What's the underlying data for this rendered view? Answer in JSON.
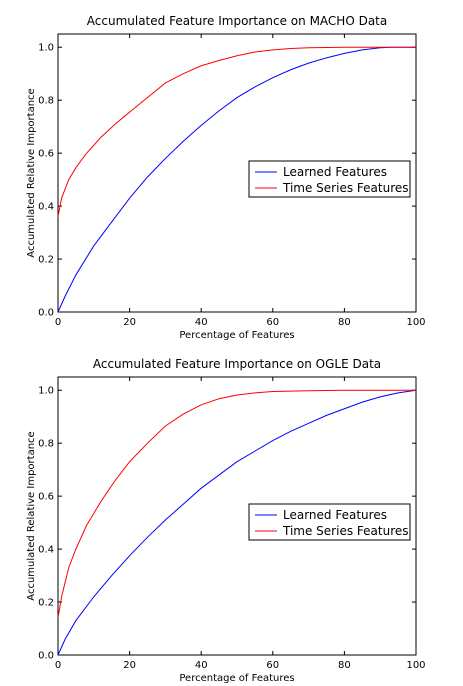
{
  "chart_data": [
    {
      "type": "line",
      "title": "Accumulated Feature Importance on MACHO Data",
      "xlabel": "Percentage of Features",
      "ylabel": "Accumulated Relative Importance",
      "xlim": [
        0,
        100
      ],
      "ylim": [
        0,
        1.05
      ],
      "xticks": [
        "0",
        "20",
        "40",
        "60",
        "80",
        "100"
      ],
      "yticks": [
        "0.0",
        "0.2",
        "0.4",
        "0.6",
        "0.8",
        "1.0"
      ],
      "grid": false,
      "legend_position": "center-right",
      "series": [
        {
          "name": "Learned Features",
          "color": "#0000ff",
          "x": [
            0,
            2,
            5,
            10,
            15,
            20,
            25,
            30,
            35,
            40,
            45,
            50,
            55,
            60,
            65,
            70,
            75,
            80,
            85,
            90,
            93,
            100
          ],
          "y": [
            0,
            0.06,
            0.14,
            0.25,
            0.34,
            0.43,
            0.51,
            0.58,
            0.645,
            0.705,
            0.76,
            0.81,
            0.85,
            0.885,
            0.915,
            0.94,
            0.96,
            0.977,
            0.99,
            0.998,
            1.0,
            1.0
          ]
        },
        {
          "name": "Time Series Features",
          "color": "#ff0000",
          "x": [
            0,
            1,
            3,
            5,
            8,
            12,
            16,
            20,
            25,
            30,
            35,
            40,
            45,
            50,
            55,
            60,
            65,
            70,
            80,
            90,
            100
          ],
          "y": [
            0.36,
            0.43,
            0.5,
            0.545,
            0.6,
            0.66,
            0.71,
            0.755,
            0.81,
            0.865,
            0.9,
            0.93,
            0.95,
            0.968,
            0.982,
            0.99,
            0.995,
            0.998,
            1.0,
            1.0,
            1.0
          ]
        }
      ]
    },
    {
      "type": "line",
      "title": "Accumulated Feature Importance on OGLE Data",
      "xlabel": "Percentage of Features",
      "ylabel": "Accumulated Relative Importance",
      "xlim": [
        0,
        100
      ],
      "ylim": [
        0,
        1.05
      ],
      "xticks": [
        "0",
        "20",
        "40",
        "60",
        "80",
        "100"
      ],
      "yticks": [
        "0.0",
        "0.2",
        "0.4",
        "0.6",
        "0.8",
        "1.0"
      ],
      "grid": false,
      "legend_position": "center-right",
      "series": [
        {
          "name": "Learned Features",
          "color": "#0000ff",
          "x": [
            0,
            2,
            5,
            10,
            15,
            20,
            25,
            30,
            35,
            40,
            45,
            50,
            55,
            60,
            65,
            70,
            75,
            80,
            85,
            90,
            95,
            100
          ],
          "y": [
            0,
            0.06,
            0.13,
            0.22,
            0.3,
            0.375,
            0.445,
            0.51,
            0.57,
            0.63,
            0.68,
            0.73,
            0.77,
            0.81,
            0.845,
            0.875,
            0.905,
            0.93,
            0.955,
            0.975,
            0.99,
            1.0
          ]
        },
        {
          "name": "Time Series Features",
          "color": "#ff0000",
          "x": [
            0,
            1,
            3,
            5,
            8,
            12,
            16,
            20,
            25,
            30,
            35,
            40,
            45,
            50,
            55,
            60,
            70,
            80,
            90,
            100
          ],
          "y": [
            0.14,
            0.22,
            0.33,
            0.4,
            0.49,
            0.58,
            0.66,
            0.73,
            0.8,
            0.865,
            0.91,
            0.945,
            0.968,
            0.982,
            0.99,
            0.995,
            0.998,
            1.0,
            1.0,
            1.0
          ]
        }
      ]
    }
  ]
}
